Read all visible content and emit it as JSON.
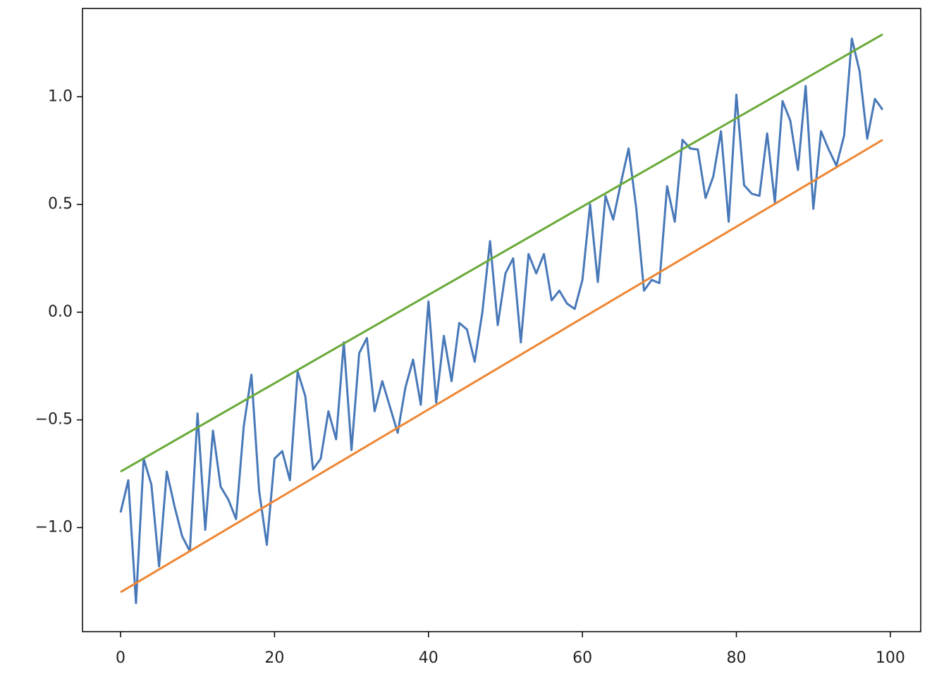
{
  "chart_data": {
    "type": "line",
    "x": [
      0,
      1,
      2,
      3,
      4,
      5,
      6,
      7,
      8,
      9,
      10,
      11,
      12,
      13,
      14,
      15,
      16,
      17,
      18,
      19,
      20,
      21,
      22,
      23,
      24,
      25,
      26,
      27,
      28,
      29,
      30,
      31,
      32,
      33,
      34,
      35,
      36,
      37,
      38,
      39,
      40,
      41,
      42,
      43,
      44,
      45,
      46,
      47,
      48,
      49,
      50,
      51,
      52,
      53,
      54,
      55,
      56,
      57,
      58,
      59,
      60,
      61,
      62,
      63,
      64,
      65,
      66,
      67,
      68,
      69,
      70,
      71,
      72,
      73,
      74,
      75,
      76,
      77,
      78,
      79,
      80,
      81,
      82,
      83,
      84,
      85,
      86,
      87,
      88,
      89,
      90,
      91,
      92,
      93,
      94,
      95,
      96,
      97,
      98,
      99
    ],
    "series": [
      {
        "color": "#4878b8",
        "values": [
          -0.93,
          -0.78,
          -1.35,
          -0.68,
          -0.8,
          -1.18,
          -0.74,
          -0.9,
          -1.04,
          -1.11,
          -0.47,
          -1.01,
          -0.55,
          -0.81,
          -0.87,
          -0.96,
          -0.53,
          -0.29,
          -0.83,
          -1.08,
          -0.68,
          -0.645,
          -0.78,
          -0.275,
          -0.39,
          -0.73,
          -0.68,
          -0.46,
          -0.59,
          -0.14,
          -0.64,
          -0.19,
          -0.12,
          -0.46,
          -0.32,
          -0.44,
          -0.56,
          -0.35,
          -0.22,
          -0.43,
          0.05,
          -0.42,
          -0.11,
          -0.32,
          -0.05,
          -0.08,
          -0.23,
          0.0,
          0.33,
          -0.06,
          0.18,
          0.25,
          -0.14,
          0.27,
          0.18,
          0.27,
          0.055,
          0.1,
          0.04,
          0.015,
          0.15,
          0.5,
          0.14,
          0.54,
          0.43,
          0.6,
          0.76,
          0.48,
          0.1,
          0.15,
          0.135,
          0.585,
          0.42,
          0.8,
          0.76,
          0.755,
          0.53,
          0.63,
          0.84,
          0.42,
          1.01,
          0.59,
          0.55,
          0.54,
          0.83,
          0.51,
          0.98,
          0.89,
          0.66,
          1.05,
          0.48,
          0.84,
          0.755,
          0.68,
          0.82,
          1.27,
          1.12,
          0.805,
          0.99,
          0.94
        ]
      },
      {
        "color": "#ef8633",
        "x": [
          0,
          99
        ],
        "values": [
          -1.3,
          0.8
        ]
      },
      {
        "color": "#6aaa3a",
        "x": [
          0,
          99
        ],
        "values": [
          -0.74,
          1.29
        ]
      }
    ],
    "xlim": [
      -4.95,
      103.95
    ],
    "ylim": [
      -1.483,
      1.41
    ],
    "xticks": [
      0,
      20,
      40,
      60,
      80,
      100
    ],
    "yticks": [
      {
        "value": -1.0,
        "label": "−1.0"
      },
      {
        "value": -0.5,
        "label": "−0.5"
      },
      {
        "value": 0.0,
        "label": "0.0"
      },
      0.5,
      {
        "value": 1.0,
        "label": "1.0"
      }
    ],
    "grid": false
  }
}
